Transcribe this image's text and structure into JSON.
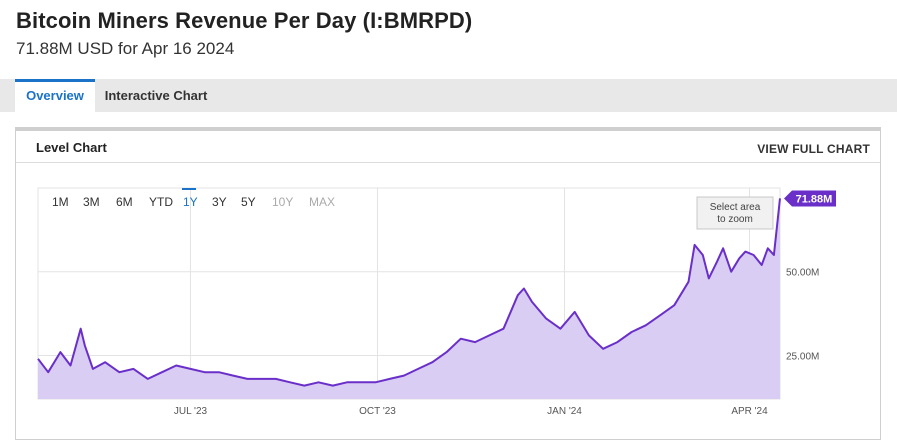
{
  "header": {
    "title": "Bitcoin Miners Revenue Per Day (I:BMRPD)",
    "subtitle": "71.88M USD for Apr 16 2024"
  },
  "tabs": [
    {
      "label": "Overview",
      "active": true
    },
    {
      "label": "Interactive Chart",
      "active": false
    }
  ],
  "panel": {
    "title": "Level Chart",
    "link": "VIEW FULL CHART"
  },
  "range_buttons": [
    {
      "label": "1M",
      "state": "normal"
    },
    {
      "label": "3M",
      "state": "normal"
    },
    {
      "label": "6M",
      "state": "normal"
    },
    {
      "label": "YTD",
      "state": "normal"
    },
    {
      "label": "1Y",
      "state": "selected"
    },
    {
      "label": "3Y",
      "state": "normal"
    },
    {
      "label": "5Y",
      "state": "normal"
    },
    {
      "label": "10Y",
      "state": "disabled"
    },
    {
      "label": "MAX",
      "state": "disabled"
    }
  ],
  "zoom_hint": [
    "Select area",
    "to zoom"
  ],
  "colors": {
    "accent": "#1a73c9",
    "series_line": "#6a2fc9",
    "series_fill": "#d9cdf3",
    "last_value_badge": "#6a2fc9",
    "grid": "#e3e3e3"
  },
  "chart_data": {
    "type": "area",
    "title": "",
    "xlabel": "",
    "ylabel": "",
    "ylim": [
      12,
      75
    ],
    "x_range": [
      "2023-04-17",
      "2024-04-16"
    ],
    "y_ticks": [
      {
        "value": 25,
        "label": "25.00M"
      },
      {
        "value": 50,
        "label": "50.00M"
      }
    ],
    "x_ticks": [
      {
        "date": "2023-07-01",
        "label": "JUL '23"
      },
      {
        "date": "2023-10-01",
        "label": "OCT '23"
      },
      {
        "date": "2024-01-01",
        "label": "JAN '24"
      },
      {
        "date": "2024-04-01",
        "label": "APR '24"
      }
    ],
    "last_value": {
      "date": "2024-04-16",
      "value": 71.88,
      "label": "71.88M"
    },
    "grid": true,
    "series": [
      {
        "points": [
          [
            "2023-04-17",
            24
          ],
          [
            "2023-04-22",
            20
          ],
          [
            "2023-04-28",
            26
          ],
          [
            "2023-05-03",
            22
          ],
          [
            "2023-05-08",
            33
          ],
          [
            "2023-05-10",
            28
          ],
          [
            "2023-05-14",
            21
          ],
          [
            "2023-05-20",
            23
          ],
          [
            "2023-05-27",
            20
          ],
          [
            "2023-06-03",
            21
          ],
          [
            "2023-06-10",
            18
          ],
          [
            "2023-06-17",
            20
          ],
          [
            "2023-06-24",
            22
          ],
          [
            "2023-07-01",
            21
          ],
          [
            "2023-07-08",
            20
          ],
          [
            "2023-07-15",
            20
          ],
          [
            "2023-07-22",
            19
          ],
          [
            "2023-07-29",
            18
          ],
          [
            "2023-08-05",
            18
          ],
          [
            "2023-08-12",
            18
          ],
          [
            "2023-08-19",
            17
          ],
          [
            "2023-08-26",
            16
          ],
          [
            "2023-09-02",
            17
          ],
          [
            "2023-09-09",
            16
          ],
          [
            "2023-09-16",
            17
          ],
          [
            "2023-09-23",
            17
          ],
          [
            "2023-09-30",
            17
          ],
          [
            "2023-10-07",
            18
          ],
          [
            "2023-10-14",
            19
          ],
          [
            "2023-10-21",
            21
          ],
          [
            "2023-10-28",
            23
          ],
          [
            "2023-11-04",
            26
          ],
          [
            "2023-11-11",
            30
          ],
          [
            "2023-11-18",
            29
          ],
          [
            "2023-11-25",
            31
          ],
          [
            "2023-12-02",
            33
          ],
          [
            "2023-12-09",
            43
          ],
          [
            "2023-12-12",
            45
          ],
          [
            "2023-12-16",
            41
          ],
          [
            "2023-12-23",
            36
          ],
          [
            "2023-12-30",
            33
          ],
          [
            "2024-01-06",
            38
          ],
          [
            "2024-01-13",
            31
          ],
          [
            "2024-01-20",
            27
          ],
          [
            "2024-01-27",
            29
          ],
          [
            "2024-02-03",
            32
          ],
          [
            "2024-02-10",
            34
          ],
          [
            "2024-02-17",
            37
          ],
          [
            "2024-02-24",
            40
          ],
          [
            "2024-03-02",
            47
          ],
          [
            "2024-03-05",
            58
          ],
          [
            "2024-03-09",
            55
          ],
          [
            "2024-03-12",
            48
          ],
          [
            "2024-03-16",
            53
          ],
          [
            "2024-03-19",
            57
          ],
          [
            "2024-03-23",
            50
          ],
          [
            "2024-03-27",
            54
          ],
          [
            "2024-03-30",
            56
          ],
          [
            "2024-04-03",
            55
          ],
          [
            "2024-04-07",
            52
          ],
          [
            "2024-04-10",
            57
          ],
          [
            "2024-04-13",
            55
          ],
          [
            "2024-04-16",
            71.88
          ]
        ]
      }
    ]
  }
}
